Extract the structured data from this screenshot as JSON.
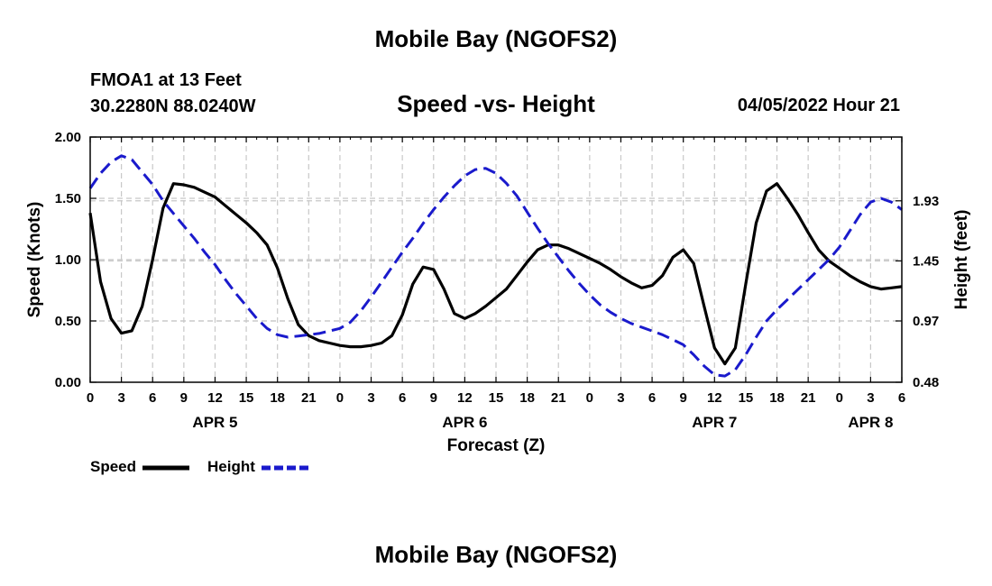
{
  "header": {
    "title": "Mobile Bay (NGOFS2)",
    "station": "FMOA1 at 13 Feet",
    "location": "30.2280N  88.0240W",
    "forecast_time": "04/05/2022 Hour 21"
  },
  "footer": {
    "title": "Mobile Bay (NGOFS2)"
  },
  "colors": {
    "speed": "#000000",
    "height": "#1a1acc",
    "grid": "#c8c8c8"
  },
  "chart_data": {
    "type": "line",
    "title": "Speed -vs- Height",
    "xlabel": "Forecast (Z)",
    "ylabel": "Speed (Knots)",
    "y2label": "Height (feet)",
    "x_unit": "hours from 04/05/2022 00Z",
    "xlim": [
      0,
      78
    ],
    "ylim": [
      0,
      2.0
    ],
    "y2lim": [
      0.48,
      2.44
    ],
    "x_ticks": [
      0,
      3,
      6,
      9,
      12,
      15,
      18,
      21,
      24,
      27,
      30,
      33,
      36,
      39,
      42,
      45,
      48,
      51,
      54,
      57,
      60,
      63,
      66,
      69,
      72,
      75,
      78
    ],
    "x_tick_labels": [
      "0",
      "3",
      "6",
      "9",
      "12",
      "15",
      "18",
      "21",
      "0",
      "3",
      "6",
      "9",
      "12",
      "15",
      "18",
      "21",
      "0",
      "3",
      "6",
      "9",
      "12",
      "15",
      "18",
      "21",
      "0",
      "3",
      "6"
    ],
    "day_labels": [
      {
        "x": 12,
        "label": "APR 5"
      },
      {
        "x": 36,
        "label": "APR 6"
      },
      {
        "x": 60,
        "label": "APR 7"
      },
      {
        "x": 75,
        "label": "APR 8"
      }
    ],
    "y_ticks": [
      0.0,
      0.5,
      1.0,
      1.5,
      2.0
    ],
    "y_tick_labels": [
      "0.00",
      "0.50",
      "1.00",
      "1.50",
      "2.00"
    ],
    "y2_ticks": [
      0.48,
      0.97,
      1.45,
      1.93
    ],
    "y2_tick_labels": [
      "0.48",
      "0.97",
      "1.45",
      "1.93"
    ],
    "legend": [
      {
        "name": "Speed",
        "style": "solid"
      },
      {
        "name": "Height",
        "style": "dashed"
      }
    ],
    "series": [
      {
        "name": "Speed",
        "axis": "left",
        "x": [
          0,
          1,
          2,
          3,
          4,
          5,
          6,
          7,
          8,
          9,
          10,
          11,
          12,
          13,
          14,
          15,
          16,
          17,
          18,
          19,
          20,
          21,
          22,
          23,
          24,
          25,
          26,
          27,
          28,
          29,
          30,
          31,
          32,
          33,
          34,
          35,
          36,
          37,
          38,
          39,
          40,
          41,
          42,
          43,
          44,
          45,
          46,
          47,
          48,
          49,
          50,
          51,
          52,
          53,
          54,
          55,
          56,
          57,
          58,
          59,
          60,
          61,
          62,
          63,
          64,
          65,
          66,
          67,
          68,
          69,
          70,
          71,
          72,
          73,
          74,
          75,
          76,
          77,
          78
        ],
        "values": [
          1.38,
          0.82,
          0.52,
          0.4,
          0.42,
          0.62,
          1.0,
          1.42,
          1.62,
          1.61,
          1.59,
          1.55,
          1.51,
          1.44,
          1.37,
          1.3,
          1.22,
          1.12,
          0.93,
          0.68,
          0.47,
          0.38,
          0.34,
          0.32,
          0.3,
          0.29,
          0.29,
          0.3,
          0.32,
          0.38,
          0.55,
          0.8,
          0.94,
          0.92,
          0.76,
          0.56,
          0.52,
          0.56,
          0.62,
          0.69,
          0.76,
          0.87,
          0.98,
          1.08,
          1.12,
          1.12,
          1.09,
          1.05,
          1.01,
          0.97,
          0.92,
          0.86,
          0.81,
          0.77,
          0.79,
          0.87,
          1.02,
          1.08,
          0.97,
          0.62,
          0.28,
          0.15,
          0.28,
          0.8,
          1.3,
          1.56,
          1.62,
          1.5,
          1.37,
          1.22,
          1.08,
          0.99,
          0.93,
          0.87,
          0.82,
          0.78,
          0.76,
          0.77,
          0.78
        ]
      },
      {
        "name": "Height",
        "axis": "right",
        "x": [
          0,
          1,
          2,
          3,
          4,
          5,
          6,
          7,
          8,
          9,
          10,
          11,
          12,
          13,
          14,
          15,
          16,
          17,
          18,
          19,
          20,
          21,
          22,
          23,
          24,
          25,
          26,
          27,
          28,
          29,
          30,
          31,
          32,
          33,
          34,
          35,
          36,
          37,
          38,
          39,
          40,
          41,
          42,
          43,
          44,
          45,
          46,
          47,
          48,
          49,
          50,
          51,
          52,
          53,
          54,
          55,
          56,
          57,
          58,
          59,
          60,
          61,
          62,
          63,
          64,
          65,
          66,
          67,
          68,
          69,
          70,
          71,
          72,
          73,
          74,
          75,
          76,
          77,
          78
        ],
        "values": [
          2.03,
          2.15,
          2.24,
          2.29,
          2.26,
          2.16,
          2.06,
          1.93,
          1.83,
          1.73,
          1.63,
          1.52,
          1.42,
          1.3,
          1.19,
          1.09,
          0.99,
          0.91,
          0.86,
          0.84,
          0.85,
          0.86,
          0.87,
          0.89,
          0.91,
          0.96,
          1.05,
          1.16,
          1.28,
          1.4,
          1.52,
          1.63,
          1.75,
          1.86,
          1.96,
          2.05,
          2.13,
          2.18,
          2.19,
          2.15,
          2.07,
          1.97,
          1.84,
          1.71,
          1.59,
          1.48,
          1.37,
          1.27,
          1.18,
          1.1,
          1.04,
          0.99,
          0.95,
          0.92,
          0.89,
          0.86,
          0.82,
          0.78,
          0.7,
          0.61,
          0.54,
          0.53,
          0.58,
          0.7,
          0.84,
          0.97,
          1.06,
          1.14,
          1.22,
          1.3,
          1.38,
          1.46,
          1.56,
          1.69,
          1.82,
          1.92,
          1.95,
          1.92,
          1.86
        ]
      }
    ]
  }
}
